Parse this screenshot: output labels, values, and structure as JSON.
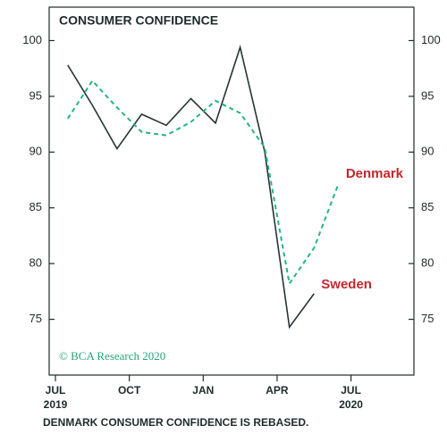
{
  "chart_data": {
    "type": "line",
    "title": "CONSUMER CONFIDENCE",
    "categories": [
      "JUL",
      null,
      null,
      "OCT",
      null,
      null,
      "JAN",
      null,
      null,
      "APR",
      null,
      null,
      "JUL"
    ],
    "year_labels": [
      {
        "index": 0,
        "label": "2019"
      },
      {
        "index": 12,
        "label": "2020"
      }
    ],
    "series": [
      {
        "name": "Sweden",
        "color": "#263434",
        "dashed": false,
        "values": [
          97.8,
          94.2,
          90.3,
          93.4,
          92.4,
          94.8,
          92.6,
          99.4,
          90,
          74.3,
          77.3,
          null,
          null
        ]
      },
      {
        "name": "Denmark",
        "color": "#26b386",
        "dashed": true,
        "values": [
          93,
          96.4,
          94,
          91.8,
          91.5,
          92.7,
          94.6,
          93.5,
          90.4,
          78.2,
          81.4,
          87.2,
          null
        ]
      }
    ],
    "label_color": "#c4262e",
    "ylim": [
      70,
      103
    ],
    "yticks": [
      75,
      80,
      85,
      90,
      95,
      100
    ],
    "source": "© BCA Research 2020",
    "footnote": "DENMARK CONSUMER CONFIDENCE IS REBASED."
  }
}
